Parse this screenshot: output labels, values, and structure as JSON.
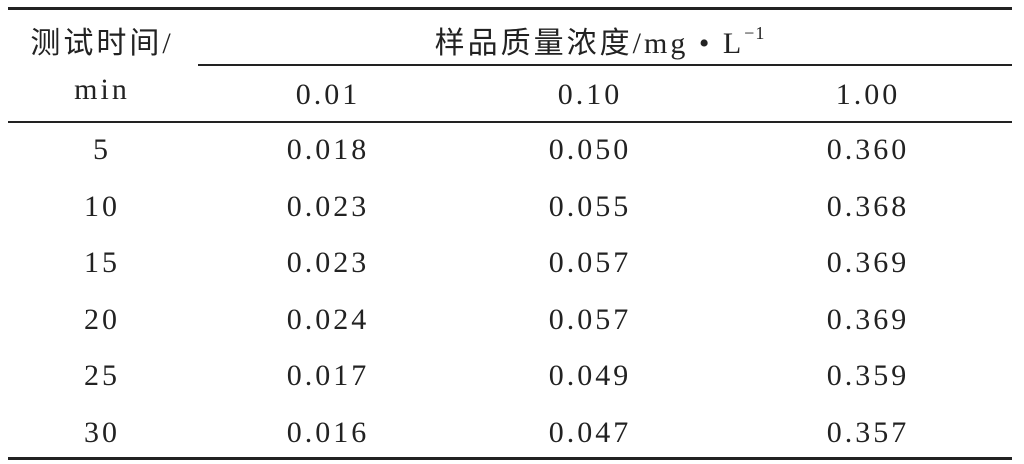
{
  "table": {
    "row_header": [
      "测试时间/",
      "min"
    ],
    "group_header": {
      "text": "样品质量浓度/mg • L",
      "sup": "−1"
    },
    "columns": [
      "0.01",
      "0.10",
      "1.00"
    ],
    "rows": [
      [
        "5",
        "0.018",
        "0.050",
        "0.360"
      ],
      [
        "10",
        "0.023",
        "0.055",
        "0.368"
      ],
      [
        "15",
        "0.023",
        "0.057",
        "0.369"
      ],
      [
        "20",
        "0.024",
        "0.057",
        "0.369"
      ],
      [
        "25",
        "0.017",
        "0.049",
        "0.359"
      ],
      [
        "30",
        "0.016",
        "0.047",
        "0.357"
      ]
    ]
  }
}
